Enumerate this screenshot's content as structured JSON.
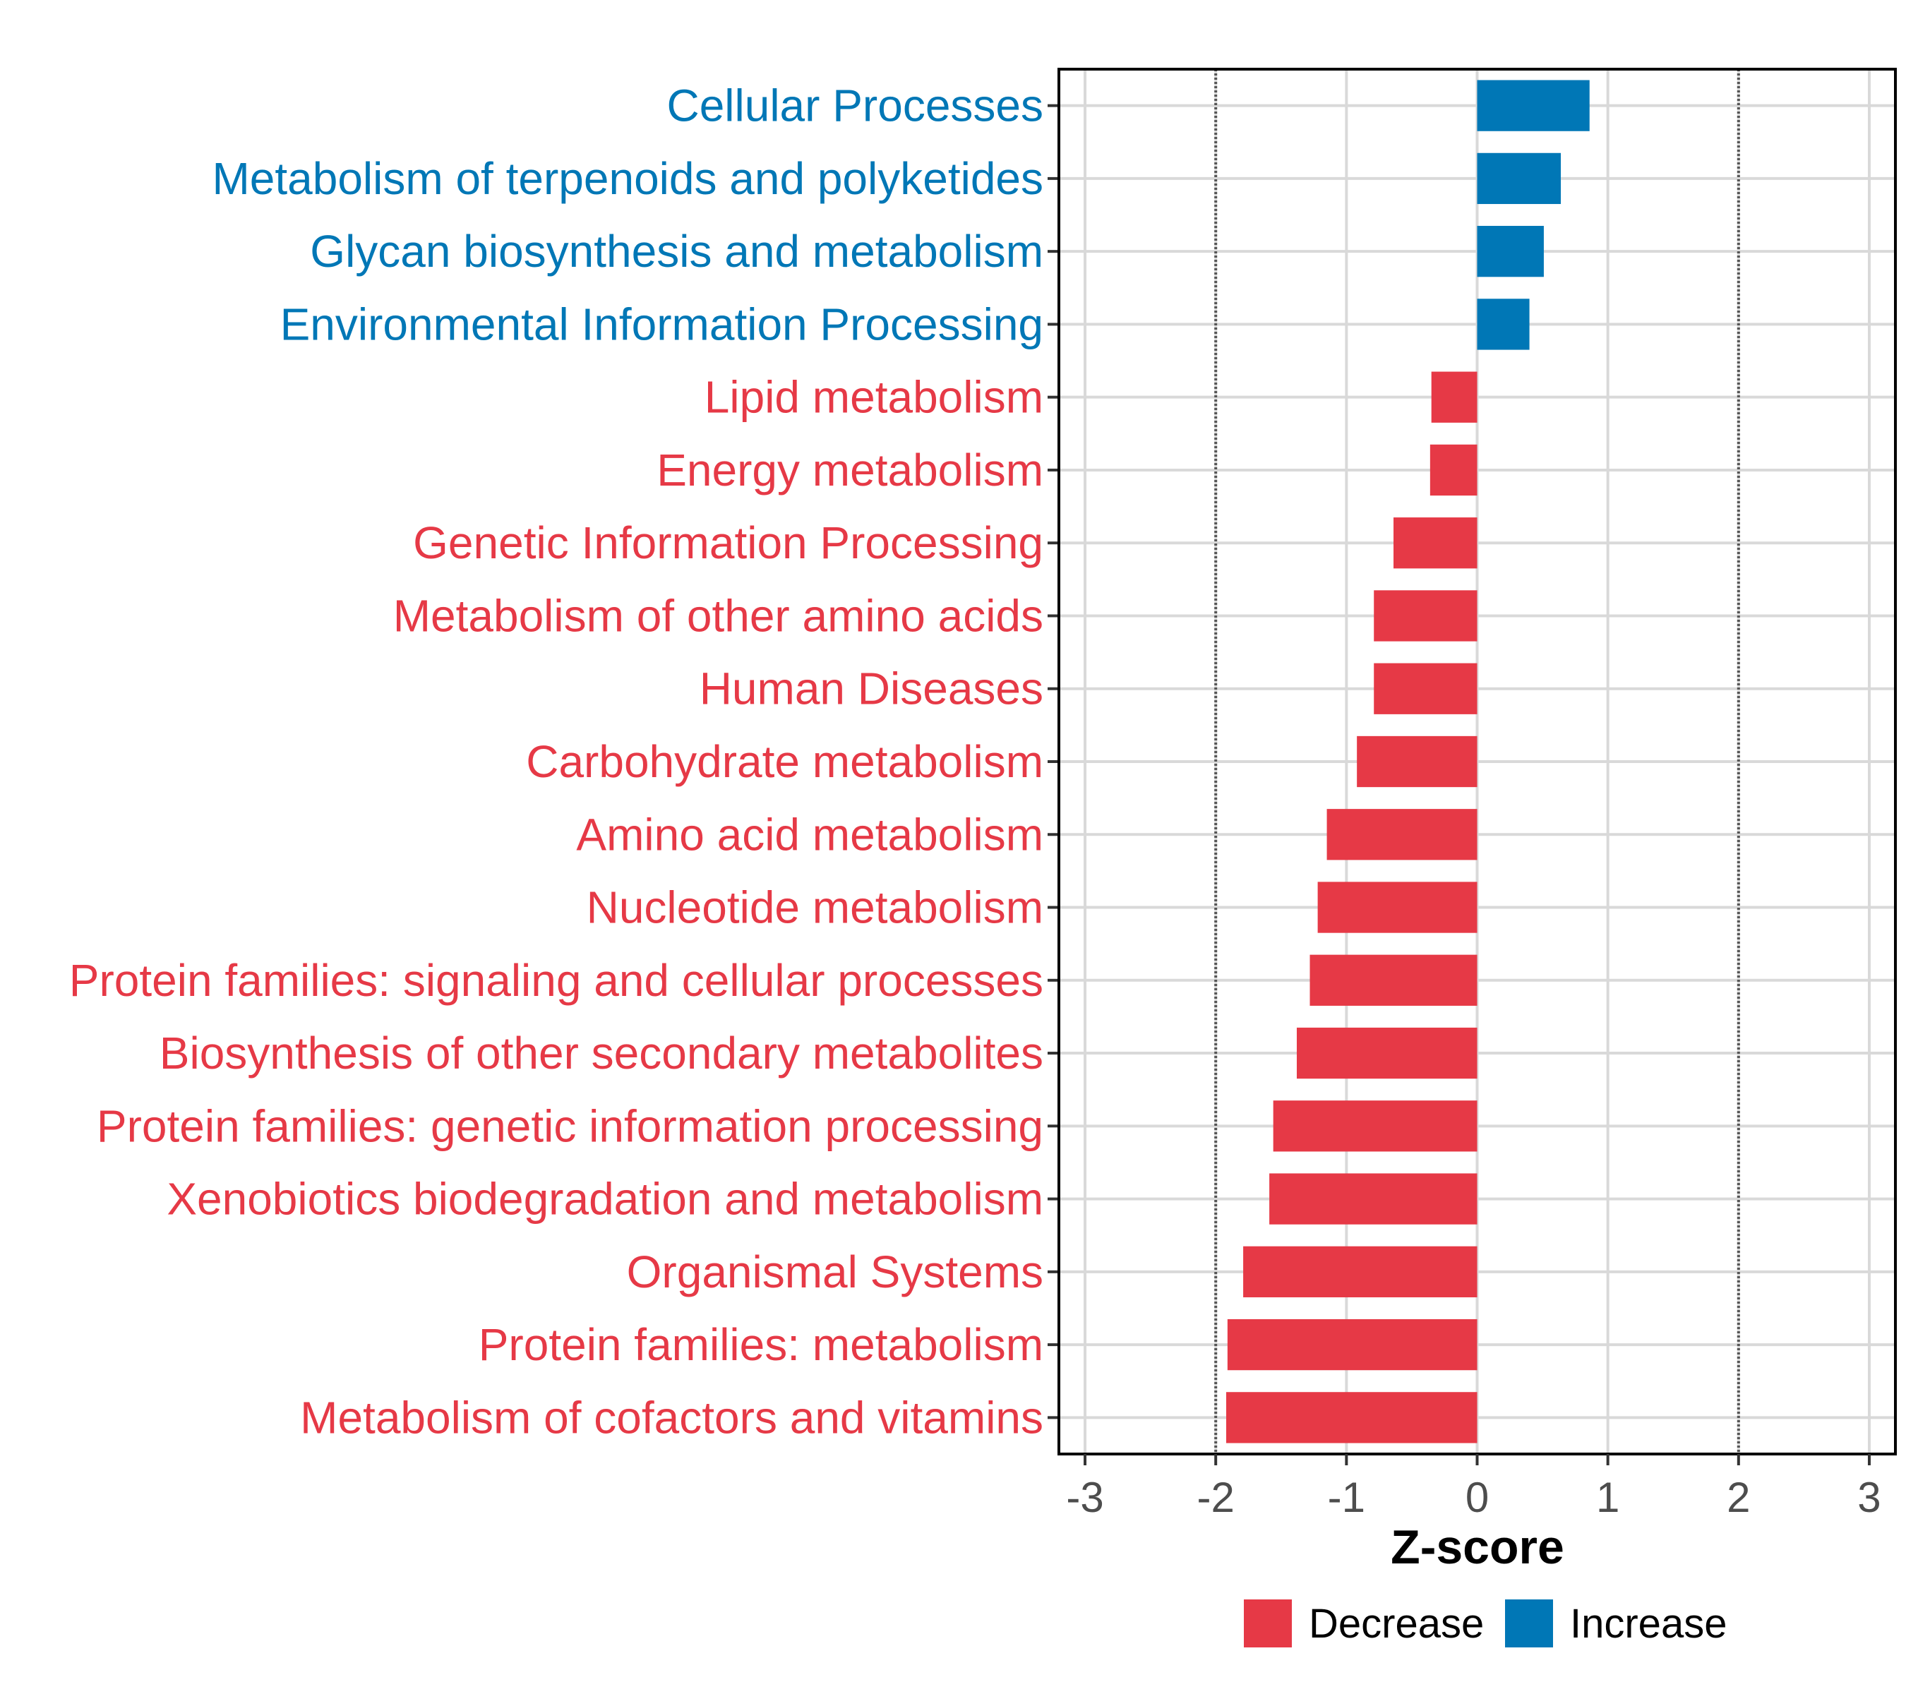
{
  "chart_data": {
    "type": "bar",
    "orientation": "horizontal",
    "title": "",
    "xlabel": "Z-score",
    "ylabel": "",
    "xlim": [
      -3.2,
      3.2
    ],
    "x_ticks": [
      -3,
      -2,
      -1,
      0,
      1,
      2,
      3
    ],
    "x_tick_labels": [
      "-3",
      "-2",
      "-1",
      "0",
      "1",
      "2",
      "3"
    ],
    "threshold_lines": [
      -2,
      2
    ],
    "grid": true,
    "legend_position": "bottom",
    "colors": {
      "Decrease": "#e63946",
      "Increase": "#0077b6"
    },
    "legend": [
      {
        "label": "Decrease",
        "color": "#e63946"
      },
      {
        "label": "Increase",
        "color": "#0077b6"
      }
    ],
    "categories": [
      "Cellular Processes",
      "Metabolism of terpenoids and polyketides",
      "Glycan biosynthesis and metabolism",
      "Environmental Information Processing",
      "Lipid metabolism",
      "Energy metabolism",
      "Genetic Information Processing",
      "Metabolism of other amino acids",
      "Human Diseases",
      "Carbohydrate metabolism",
      "Amino acid metabolism",
      "Nucleotide metabolism",
      "Protein families: signaling and cellular processes",
      "Biosynthesis of other secondary metabolites",
      "Protein families: genetic information processing",
      "Xenobiotics biodegradation and metabolism",
      "Organismal Systems",
      "Protein families: metabolism",
      "Metabolism of cofactors and vitamins"
    ],
    "values": [
      0.86,
      0.64,
      0.51,
      0.4,
      -0.35,
      -0.36,
      -0.64,
      -0.79,
      -0.79,
      -0.92,
      -1.15,
      -1.22,
      -1.28,
      -1.38,
      -1.56,
      -1.59,
      -1.79,
      -1.91,
      -1.92
    ],
    "groups": [
      "Increase",
      "Increase",
      "Increase",
      "Increase",
      "Decrease",
      "Decrease",
      "Decrease",
      "Decrease",
      "Decrease",
      "Decrease",
      "Decrease",
      "Decrease",
      "Decrease",
      "Decrease",
      "Decrease",
      "Decrease",
      "Decrease",
      "Decrease",
      "Decrease"
    ]
  }
}
